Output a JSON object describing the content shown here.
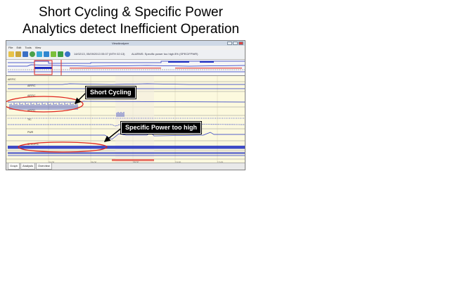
{
  "slide": {
    "title_line1": "Short Cycling & Specific Power",
    "title_line2": "Analytics detect Inefficient Operation"
  },
  "window": {
    "title": "ViewAnalyzer",
    "menu": [
      "File",
      "Edit",
      "Tools",
      "View"
    ],
    "toolbar_info": "14/02/13, 05/09/2013 05:07 (MTH 02:13)",
    "alarm_text": "ALARMS: Specific power too high 8% (SPECIFPWR)",
    "status_tabs": [
      "Graph",
      "Analysis",
      "Overview"
    ],
    "active_tab": "Graph"
  },
  "callouts": {
    "short_cycling": "Short Cycling",
    "specific_power": "Specific Power too high"
  },
  "colors": {
    "trace": "#1e2fc2",
    "highlight": "#e0251d",
    "plot_bg": "#fcf9de",
    "callout_bg": "#000000"
  }
}
